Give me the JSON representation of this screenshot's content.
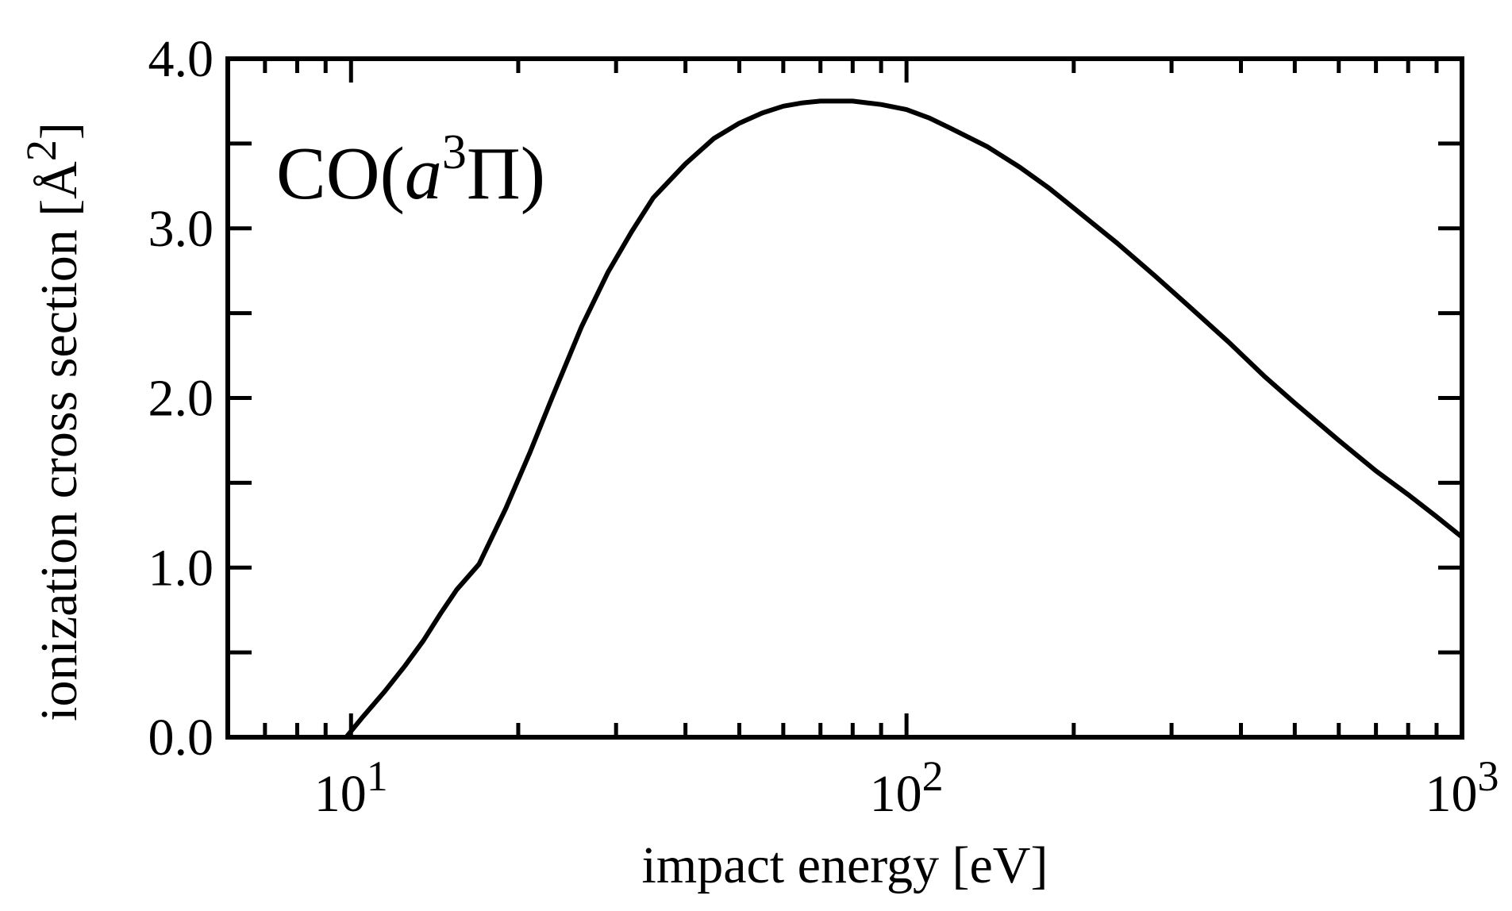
{
  "chart_data": {
    "type": "line",
    "title": "",
    "xlabel": "impact energy [eV]",
    "ylabel_main": "ionization cross section [Å",
    "ylabel_sup": "2",
    "ylabel_close": "]",
    "xscale": "log",
    "xlim": [
      6,
      1000
    ],
    "ylim": [
      0,
      4
    ],
    "grid": false,
    "legend": "none",
    "x_ticks": [
      {
        "value": 10,
        "base": "10",
        "exp": "1"
      },
      {
        "value": 100,
        "base": "10",
        "exp": "2"
      },
      {
        "value": 1000,
        "base": "10",
        "exp": "3"
      }
    ],
    "y_ticks": [
      {
        "value": 0,
        "label": "0.0"
      },
      {
        "value": 1,
        "label": "1.0"
      },
      {
        "value": 2,
        "label": "2.0"
      },
      {
        "value": 3,
        "label": "3.0"
      },
      {
        "value": 4,
        "label": "4.0"
      }
    ],
    "y_minor_ticks": [
      0.5,
      1.5,
      2.5,
      3.5
    ],
    "annotation": {
      "prefix": "CO(",
      "var": "a",
      "sup": "3",
      "greek": "Π",
      "suffix": ")"
    },
    "series": [
      {
        "name": "CO(a3Π)",
        "color": "#000000",
        "x": [
          9.8,
          10.5,
          11.5,
          12.5,
          13.5,
          14.5,
          15.5,
          17,
          19,
          21,
          23,
          26,
          29,
          32,
          35,
          40,
          45,
          50,
          55,
          60,
          65,
          70,
          75,
          80,
          85,
          90,
          100,
          110,
          120,
          140,
          160,
          180,
          200,
          240,
          280,
          320,
          380,
          440,
          500,
          600,
          700,
          800,
          900,
          1000
        ],
        "y": [
          0.0,
          0.12,
          0.27,
          0.42,
          0.57,
          0.73,
          0.87,
          1.02,
          1.35,
          1.68,
          2.0,
          2.42,
          2.74,
          2.98,
          3.18,
          3.38,
          3.53,
          3.62,
          3.68,
          3.72,
          3.74,
          3.75,
          3.75,
          3.75,
          3.74,
          3.73,
          3.7,
          3.65,
          3.59,
          3.48,
          3.36,
          3.24,
          3.12,
          2.91,
          2.72,
          2.55,
          2.33,
          2.13,
          1.97,
          1.75,
          1.57,
          1.43,
          1.3,
          1.18
        ]
      }
    ]
  }
}
